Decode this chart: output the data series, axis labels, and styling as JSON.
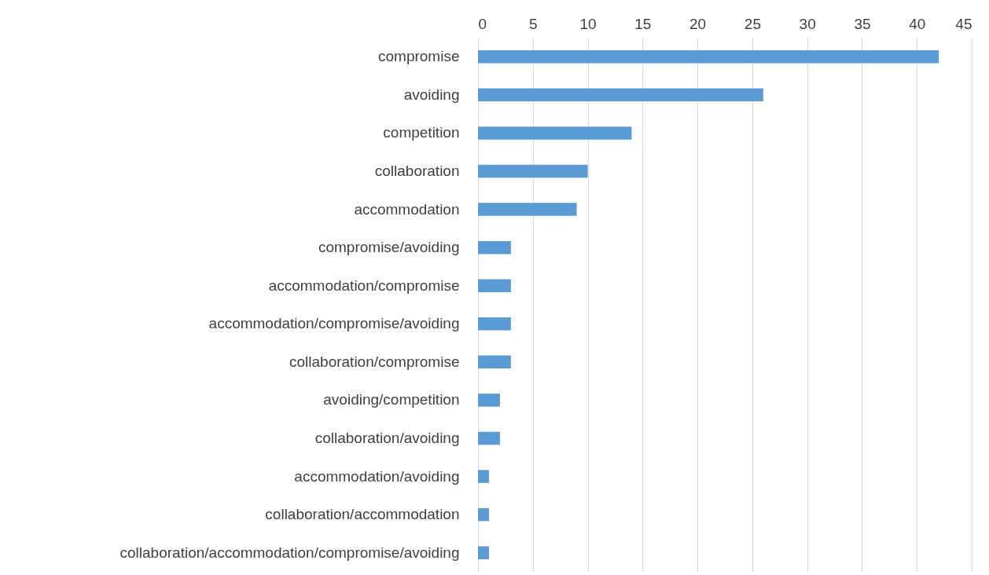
{
  "chart_data": {
    "type": "bar",
    "orientation": "horizontal",
    "categories": [
      "compromise",
      "avoiding",
      "competition",
      "collaboration",
      "accommodation",
      "compromise/avoiding",
      "accommodation/compromise",
      "accommodation/compromise/avoiding",
      "collaboration/compromise",
      "avoiding/competition",
      "collaboration/avoiding",
      "accommodation/avoiding",
      "collaboration/accommodation",
      "collaboration/accommodation/compromise/avoiding"
    ],
    "values": [
      42,
      26,
      14,
      10,
      9,
      3,
      3,
      3,
      3,
      2,
      2,
      1,
      1,
      1
    ],
    "color": "#5b9bd5",
    "xlim": [
      0,
      45
    ],
    "xticks": [
      0,
      5,
      10,
      15,
      20,
      25,
      30,
      35,
      40,
      45
    ],
    "grid": "x"
  }
}
